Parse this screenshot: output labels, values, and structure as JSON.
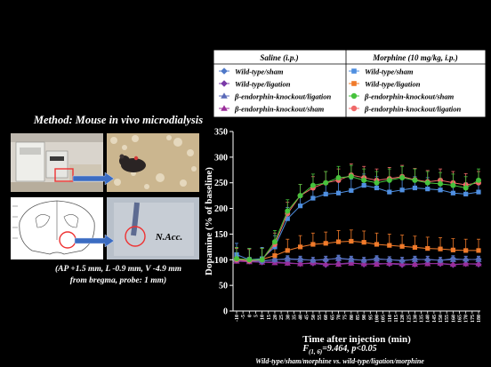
{
  "method": {
    "title": "Method: Mouse in vivo microdialysis",
    "coordinates_line1": "(AP +1.5 mm, L -0.9 mm, V -4.9 mm",
    "coordinates_line2": "from bregma, probe: 1 mm)",
    "region_label": "N.Acc."
  },
  "legend": {
    "saline_header": "Saline (i.p.)",
    "morphine_header": "Morphine (10 mg/kg, i.p.)"
  },
  "stats": {
    "f_prefix": "F",
    "f_subscript": "(1, 6)",
    "f_value": "=9.464, p<0.05",
    "comparison": "Wild-type/sham/morphine vs. wild-type/ligation/morphine"
  },
  "colors": {
    "wt_sham_saline": "#4f78c8",
    "wt_ligation_saline": "#7a3aa8",
    "bko_ligation_saline": "#5a6ab8",
    "bko_sham_saline": "#9a2d9a",
    "wt_sham_morphine": "#4f8fe0",
    "wt_ligation_morphine": "#f07a2a",
    "bko_sham_morphine": "#46c23c",
    "bko_ligation_morphine": "#f06868",
    "error_bar": "#f07a2a"
  },
  "chart_data": {
    "type": "line",
    "xlabel": "Time after injection (min)",
    "ylabel": "Dopamine (% of baseline)",
    "ylim": [
      0,
      350
    ],
    "yticks": [
      0,
      50,
      100,
      150,
      200,
      250,
      300,
      350
    ],
    "xlim": [
      -10,
      180
    ],
    "xticks": [
      -10,
      -5,
      0,
      5,
      10,
      15,
      20,
      25,
      30,
      35,
      40,
      45,
      50,
      55,
      60,
      65,
      70,
      75,
      80,
      85,
      90,
      95,
      100,
      105,
      110,
      115,
      120,
      125,
      130,
      135,
      140,
      145,
      150,
      155,
      160,
      165,
      170,
      175,
      180
    ],
    "legend_placement": "top",
    "series": [
      {
        "name": "Wild-type/sham",
        "group": "Saline (i.p.)",
        "marker": "diamond",
        "color_key": "wt_sham_saline",
        "x": [
          -10,
          0,
          10,
          20,
          30,
          40,
          50,
          60,
          70,
          80,
          90,
          100,
          110,
          120,
          130,
          140,
          150,
          160,
          170,
          180
        ],
        "y": [
          100,
          98,
          97,
          100,
          102,
          101,
          99,
          100,
          103,
          101,
          99,
          102,
          100,
          98,
          101,
          100,
          99,
          102,
          100,
          101
        ]
      },
      {
        "name": "Wild-type/ligation",
        "group": "Saline (i.p.)",
        "marker": "diamond",
        "color_key": "wt_ligation_saline",
        "x": [
          -10,
          0,
          10,
          20,
          30,
          40,
          50,
          60,
          70,
          80,
          90,
          100,
          110,
          120,
          130,
          140,
          150,
          160,
          170,
          180
        ],
        "y": [
          98,
          97,
          95,
          96,
          94,
          92,
          93,
          90,
          92,
          94,
          91,
          93,
          92,
          90,
          91,
          93,
          92,
          90,
          92,
          91
        ]
      },
      {
        "name": "β-endorphin-knockout/ligation",
        "group": "Saline (i.p.)",
        "marker": "triangle",
        "color_key": "bko_ligation_saline",
        "x": [
          -10,
          0,
          10,
          20,
          30,
          40,
          50,
          60,
          70,
          80,
          90,
          100,
          110,
          120,
          130,
          140,
          150,
          160,
          170,
          180
        ],
        "y": [
          100,
          99,
          98,
          100,
          101,
          100,
          99,
          101,
          102,
          100,
          99,
          101,
          100,
          99,
          100,
          101,
          99,
          100,
          101,
          100
        ]
      },
      {
        "name": "β-endorphin-knockout/sham",
        "group": "Saline (i.p.)",
        "marker": "triangle",
        "color_key": "bko_sham_saline",
        "x": [
          -10,
          0,
          10,
          20,
          30,
          40,
          50,
          60,
          70,
          80,
          90,
          100,
          110,
          120,
          130,
          140,
          150,
          160,
          170,
          180
        ],
        "y": [
          97,
          96,
          95,
          94,
          93,
          92,
          94,
          92,
          91,
          93,
          92,
          91,
          93,
          92,
          91,
          92,
          93,
          91,
          92,
          92
        ]
      },
      {
        "name": "Wild-type/sham",
        "group": "Morphine (10 mg/kg, i.p.)",
        "marker": "square",
        "color_key": "wt_sham_morphine",
        "x": [
          -10,
          0,
          10,
          20,
          30,
          40,
          50,
          60,
          70,
          80,
          90,
          100,
          110,
          120,
          130,
          140,
          150,
          160,
          170,
          180
        ],
        "y": [
          110,
          100,
          102,
          125,
          180,
          205,
          220,
          228,
          230,
          235,
          245,
          240,
          232,
          236,
          240,
          238,
          236,
          230,
          228,
          232
        ]
      },
      {
        "name": "Wild-type/ligation",
        "group": "Morphine (10 mg/kg, i.p.)",
        "marker": "square",
        "color_key": "wt_ligation_morphine",
        "x": [
          -10,
          0,
          10,
          20,
          30,
          40,
          50,
          60,
          70,
          80,
          90,
          100,
          110,
          120,
          130,
          140,
          150,
          160,
          170,
          180
        ],
        "y": [
          102,
          100,
          101,
          108,
          118,
          125,
          130,
          132,
          135,
          136,
          134,
          130,
          128,
          126,
          124,
          122,
          121,
          119,
          118,
          118
        ]
      },
      {
        "name": "β-endorphin-knockout/sham",
        "group": "Morphine (10 mg/kg, i.p.)",
        "marker": "circle",
        "color_key": "bko_sham_morphine",
        "x": [
          -10,
          0,
          10,
          20,
          30,
          40,
          50,
          60,
          70,
          80,
          90,
          100,
          110,
          120,
          130,
          140,
          150,
          160,
          170,
          180
        ],
        "y": [
          102,
          100,
          100,
          135,
          195,
          225,
          245,
          250,
          260,
          262,
          255,
          250,
          255,
          260,
          255,
          250,
          248,
          245,
          240,
          255
        ]
      },
      {
        "name": "β-endorphin-knockout/ligation",
        "group": "Morphine (10 mg/kg, i.p.)",
        "marker": "circle",
        "color_key": "bko_ligation_morphine",
        "x": [
          -10,
          0,
          10,
          20,
          30,
          40,
          50,
          60,
          70,
          80,
          90,
          100,
          110,
          120,
          130,
          140,
          150,
          160,
          170,
          180
        ],
        "y": [
          100,
          98,
          100,
          130,
          190,
          225,
          240,
          250,
          255,
          265,
          260,
          255,
          258,
          262,
          256,
          252,
          255,
          250,
          246,
          250
        ]
      }
    ]
  }
}
